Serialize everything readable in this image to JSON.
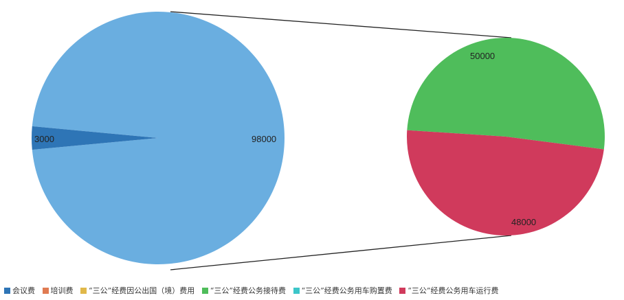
{
  "chart_data": {
    "type": "pie",
    "subtype": "pie-of-pie",
    "title": "",
    "legend_position": "bottom",
    "main_pie": [
      {
        "label": "会议费",
        "value": 3000,
        "color": "#2e75b6"
      },
      {
        "label": "\"三公\"经费公务接待费 + \"三公\"经费公务用车运行费",
        "value": 98000,
        "color": "#6aaee0"
      }
    ],
    "secondary_pie": [
      {
        "label": "\"三公\"经费公务接待费",
        "value": 50000,
        "color": "#4fbd5b"
      },
      {
        "label": "\"三公\"经费公务用车运行费",
        "value": 48000,
        "color": "#d03a5c"
      }
    ],
    "data_labels": {
      "conference": "3000",
      "other": "98000",
      "reception": "50000",
      "vehicle_operation": "48000"
    }
  },
  "legend": [
    {
      "label": "会议费",
      "color": "#2e75b6"
    },
    {
      "label": "培训费",
      "color": "#e07b52"
    },
    {
      "label": "“三公”经费因公出国（境）费用",
      "color": "#e0b84a"
    },
    {
      "label": "“三公”经费公务接待费",
      "color": "#4fbd5b"
    },
    {
      "label": "“三公”经费公务用车购置费",
      "color": "#3cc6c9"
    },
    {
      "label": "“三公”经费公务用车运行费",
      "color": "#d03a5c"
    }
  ]
}
